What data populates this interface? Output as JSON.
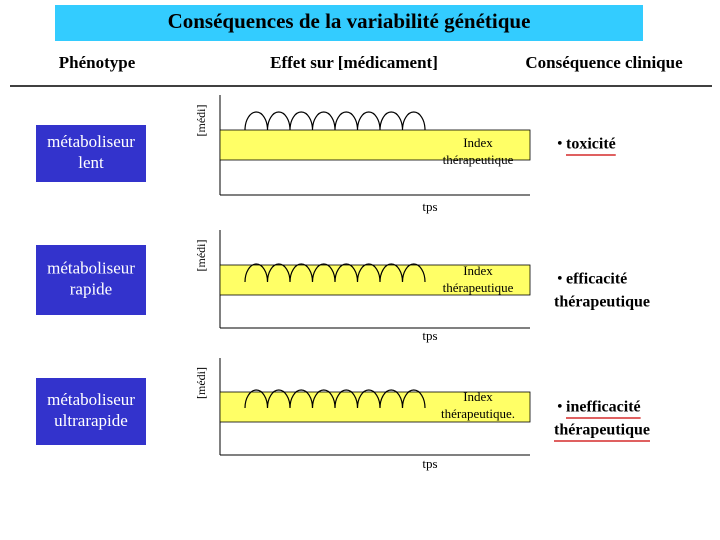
{
  "header": {
    "title": "Conséquences de la variabilité génétique"
  },
  "columns": [
    "Phénotype",
    "Effet sur [médicament]",
    "Conséquence clinique"
  ],
  "rows": [
    {
      "phenotype": [
        "métaboliseur",
        "lent"
      ],
      "y_axis": "[médi]",
      "x_axis": "tps",
      "index": [
        "Index",
        "thérapeutique"
      ],
      "bullet": "•",
      "consequence": [
        "toxicité"
      ],
      "underlined": true
    },
    {
      "phenotype": [
        "métaboliseur",
        "rapide"
      ],
      "y_axis": "[médi]",
      "x_axis": "tps",
      "index": [
        "Index",
        "thérapeutique"
      ],
      "bullet": "•",
      "consequence": [
        "efficacité",
        "thérapeutique"
      ],
      "underlined": false
    },
    {
      "phenotype": [
        "métaboliseur",
        "ultrarapide"
      ],
      "y_axis": "[médi]",
      "x_axis": "tps",
      "index": [
        "Index",
        "thérapeutique."
      ],
      "bullet": "•",
      "consequence": [
        "inefficacité",
        "thérapeutique"
      ],
      "underlined": true
    }
  ]
}
